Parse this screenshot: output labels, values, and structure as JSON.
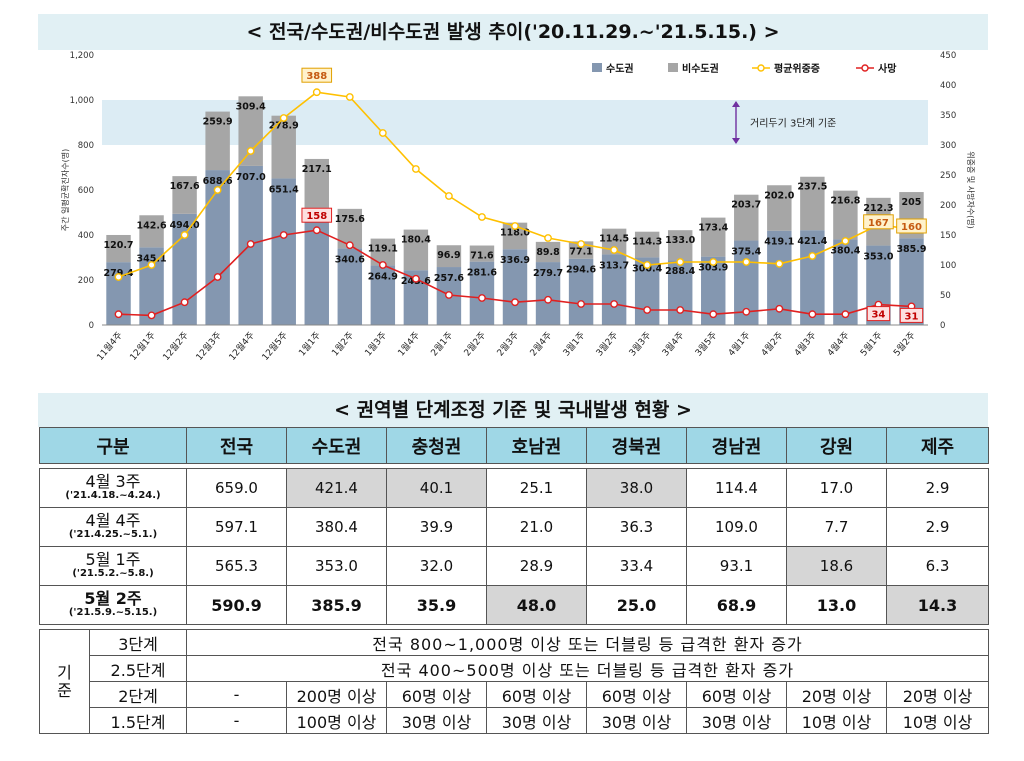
{
  "chart_title": "< 전국/수도권/비수도권 발생 추이('20.11.29.~'21.5.15.) >",
  "table_title": "< 권역별 단계조정 기준 및 국내발생 현황 >",
  "colors": {
    "metro": "#8497b0",
    "nonmetro": "#a6a6a6",
    "avg": "#ffc000",
    "death": "#e02020",
    "band": "#dcecf4"
  },
  "chart_data": {
    "type": "bar",
    "stacked": true,
    "categories": [
      "11월4주",
      "12월1주",
      "12월2주",
      "12월3주",
      "12월4주",
      "12월5주",
      "1월1주",
      "1월2주",
      "1월3주",
      "1월4주",
      "2월1주",
      "2월2주",
      "2월3주",
      "2월4주",
      "3월1주",
      "3월2주",
      "3월3주",
      "3월4주",
      "3월5주",
      "4월1주",
      "4월2주",
      "4월3주",
      "4월4주",
      "5월1주",
      "5월2주"
    ],
    "series": [
      {
        "name": "수도권",
        "type": "bar",
        "axis": "left",
        "values": [
          279.4,
          345.1,
          494.0,
          688.6,
          707.0,
          651.4,
          520.9,
          340.6,
          264.9,
          243.6,
          257.6,
          281.6,
          336.9,
          279.7,
          294.6,
          313.7,
          300.4,
          288.4,
          303.9,
          375.4,
          419.1,
          421.4,
          380.4,
          353.0,
          385.9
        ],
        "labels": [
          "279.4",
          "345.1",
          "494.0",
          "688.6",
          "707.0",
          "651.4",
          "520.9",
          "340.6",
          "264.9",
          "243.6",
          "257.6",
          "281.6",
          "336.9",
          "279.7",
          "294.6",
          "313.7",
          "300.4",
          "288.4",
          "303.9",
          "375.4",
          "419.1",
          "421.4",
          "380.4",
          "353.0",
          "385.9"
        ]
      },
      {
        "name": "비수도권",
        "type": "bar",
        "axis": "left",
        "values": [
          120.7,
          142.6,
          167.6,
          259.9,
          309.4,
          278.9,
          217.1,
          175.6,
          119.1,
          180.4,
          96.9,
          71.6,
          118.0,
          89.8,
          77.1,
          114.5,
          114.3,
          133.0,
          173.4,
          203.7,
          202.0,
          237.5,
          216.8,
          212.3,
          205
        ],
        "labels": [
          "120.7",
          "142.6",
          "167.6",
          "259.9",
          "309.4",
          "278.9",
          "217.1",
          "175.6",
          "119.1",
          "180.4",
          "96.9",
          "71.6",
          "118.0",
          "89.8",
          "77.1",
          "114.5",
          "114.3",
          "133.0",
          "173.4",
          "203.7",
          "202.0",
          "237.5",
          "216.8",
          "212.3",
          "205"
        ]
      },
      {
        "name": "평균위중증",
        "type": "line",
        "axis": "right",
        "values": [
          80,
          100,
          150,
          225,
          290,
          345,
          388,
          380,
          320,
          260,
          215,
          180,
          165,
          145,
          135,
          125,
          100,
          105,
          105,
          105,
          102,
          115,
          140,
          167,
          160
        ],
        "labels": {
          "6": "388",
          "23": "167",
          "24": "160"
        }
      },
      {
        "name": "사망",
        "type": "line",
        "axis": "right",
        "values": [
          18,
          16,
          38,
          80,
          135,
          150,
          158,
          133,
          100,
          77,
          50,
          45,
          38,
          42,
          35,
          35,
          25,
          25,
          18,
          22,
          27,
          18,
          18,
          34,
          31
        ],
        "labels": {
          "6": "158",
          "23": "34",
          "24": "31"
        }
      }
    ],
    "ylabel_left": "주간 일평균확진자수(명)",
    "ylabel_right": "위중증 및 사망자수(명)",
    "ylim_left": [
      0,
      1200
    ],
    "yticks_left": [
      "0",
      "200",
      "400",
      "600",
      "800",
      "1,000",
      "1,200"
    ],
    "ylim_right": [
      0,
      450
    ],
    "yticks_right": [
      "0",
      "50",
      "100",
      "150",
      "200",
      "250",
      "300",
      "350",
      "400",
      "450"
    ],
    "band": {
      "from": 800,
      "to": 1000,
      "label": "거리두기 3단계 기준"
    },
    "legend_position": "top-right"
  },
  "table": {
    "headers": [
      "구분",
      "전국",
      "수도권",
      "충청권",
      "호남권",
      "경북권",
      "경남권",
      "강원",
      "제주"
    ],
    "weeks": [
      {
        "week": "4월 3주",
        "dates": "('21.4.18.~4.24.)",
        "values": [
          "659.0",
          "421.4",
          "40.1",
          "25.1",
          "38.0",
          "114.4",
          "17.0",
          "2.9"
        ]
      },
      {
        "week": "4월 4주",
        "dates": "('21.4.25.~5.1.)",
        "values": [
          "597.1",
          "380.4",
          "39.9",
          "21.0",
          "36.3",
          "109.0",
          "7.7",
          "2.9"
        ]
      },
      {
        "week": "5월 1주",
        "dates": "('21.5.2.~5.8.)",
        "values": [
          "565.3",
          "353.0",
          "32.0",
          "28.9",
          "33.4",
          "93.1",
          "18.6",
          "6.3"
        ]
      },
      {
        "week": "5월 2주",
        "dates": "('21.5.9.~5.15.)",
        "values": [
          "590.9",
          "385.9",
          "35.9",
          "48.0",
          "25.0",
          "68.9",
          "13.0",
          "14.3"
        ]
      }
    ],
    "criteria_label": "기준",
    "criteria": [
      {
        "level": "3단계",
        "text": "전국 800~1,000명 이상 또는 더블링 등 급격한 환자 증가"
      },
      {
        "level": "2.5단계",
        "text": "전국 400~500명 이상 또는 더블링 등 급격한 환자 증가"
      },
      {
        "level": "2단계",
        "values": [
          "-",
          "200명 이상",
          "60명 이상",
          "60명 이상",
          "60명 이상",
          "60명 이상",
          "20명 이상",
          "20명 이상"
        ]
      },
      {
        "level": "1.5단계",
        "values": [
          "-",
          "100명 이상",
          "30명 이상",
          "30명 이상",
          "30명 이상",
          "30명 이상",
          "10명 이상",
          "10명 이상"
        ]
      }
    ]
  }
}
